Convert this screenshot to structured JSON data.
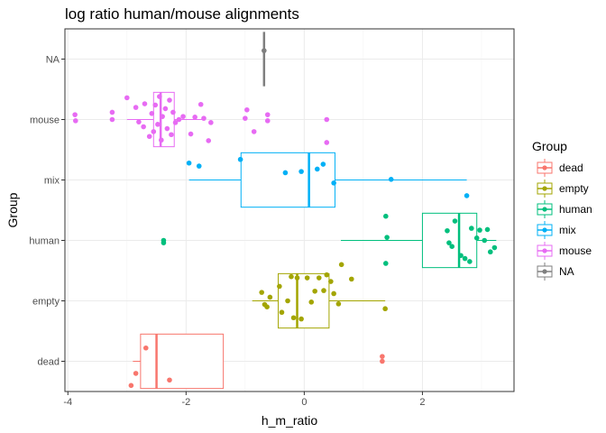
{
  "chart_data": {
    "type": "boxplot",
    "title": "log ratio human/mouse alignments",
    "xlabel": "h_m_ratio",
    "ylabel": "Group",
    "xlim": [
      -4.05,
      3.55
    ],
    "x_ticks": [
      "-4",
      "-2",
      "0",
      "2"
    ],
    "x_tick_values": [
      -4,
      -2,
      0,
      2
    ],
    "categories": [
      "dead",
      "empty",
      "human",
      "mix",
      "mouse",
      "NA"
    ],
    "grid": true,
    "legend": {
      "title": "Group",
      "placement": "right",
      "entries": [
        "dead",
        "empty",
        "human",
        "mix",
        "mouse",
        "NA"
      ]
    },
    "colors": {
      "dead": "#f8766d",
      "empty": "#a3a500",
      "human": "#00bf7d",
      "mix": "#00b0f6",
      "mouse": "#e76bf3",
      "NA": "#7f7f7f"
    },
    "series": [
      {
        "name": "dead",
        "box": {
          "whisker_low": -2.9,
          "q1": -2.77,
          "median": -2.5,
          "q3": -1.37,
          "whisker_high": -1.37
        },
        "outliers": [],
        "points": [
          {
            "x": -2.93,
            "jitter": -0.4
          },
          {
            "x": -2.85,
            "jitter": -0.2
          },
          {
            "x": -2.68,
            "jitter": 0.22
          },
          {
            "x": -2.28,
            "jitter": -0.31
          },
          {
            "x": 1.32,
            "jitter": 0.08
          },
          {
            "x": 1.32,
            "jitter": 0.0
          }
        ]
      },
      {
        "name": "empty",
        "box": {
          "whisker_low": -0.88,
          "q1": -0.44,
          "median": -0.12,
          "q3": 0.42,
          "whisker_high": 1.37
        },
        "outliers": [],
        "points": [
          {
            "x": -0.72,
            "jitter": 0.14
          },
          {
            "x": -0.67,
            "jitter": -0.06
          },
          {
            "x": -0.63,
            "jitter": -0.1
          },
          {
            "x": -0.58,
            "jitter": 0.06
          },
          {
            "x": -0.42,
            "jitter": 0.24
          },
          {
            "x": -0.38,
            "jitter": -0.19
          },
          {
            "x": -0.28,
            "jitter": 0.0
          },
          {
            "x": -0.22,
            "jitter": 0.4
          },
          {
            "x": -0.18,
            "jitter": -0.28
          },
          {
            "x": -0.12,
            "jitter": 0.38
          },
          {
            "x": -0.05,
            "jitter": -0.3
          },
          {
            "x": 0.05,
            "jitter": 0.38
          },
          {
            "x": 0.12,
            "jitter": -0.02
          },
          {
            "x": 0.18,
            "jitter": 0.16
          },
          {
            "x": 0.25,
            "jitter": 0.38
          },
          {
            "x": 0.33,
            "jitter": 0.17
          },
          {
            "x": 0.38,
            "jitter": 0.43
          },
          {
            "x": 0.45,
            "jitter": 0.32
          },
          {
            "x": 0.5,
            "jitter": 0.12
          },
          {
            "x": 0.58,
            "jitter": -0.05
          },
          {
            "x": 0.63,
            "jitter": 0.6
          },
          {
            "x": 0.8,
            "jitter": 0.36
          },
          {
            "x": 1.37,
            "jitter": -0.13
          }
        ]
      },
      {
        "name": "human",
        "box": {
          "whisker_low": 0.62,
          "q1": 2.0,
          "median": 2.62,
          "q3": 2.92,
          "whisker_high": 3.25
        },
        "outliers": [
          -2.38
        ],
        "points": [
          {
            "x": -2.38,
            "jitter": 0.0
          },
          {
            "x": -2.38,
            "jitter": -0.04
          },
          {
            "x": 1.38,
            "jitter": 0.4
          },
          {
            "x": 1.4,
            "jitter": 0.05
          },
          {
            "x": 1.38,
            "jitter": -0.38
          },
          {
            "x": 2.42,
            "jitter": 0.16
          },
          {
            "x": 2.45,
            "jitter": -0.04
          },
          {
            "x": 2.5,
            "jitter": -0.1
          },
          {
            "x": 2.55,
            "jitter": 0.32
          },
          {
            "x": 2.65,
            "jitter": -0.25
          },
          {
            "x": 2.72,
            "jitter": -0.3
          },
          {
            "x": 2.8,
            "jitter": -0.35
          },
          {
            "x": 2.83,
            "jitter": 0.2
          },
          {
            "x": 2.92,
            "jitter": 0.04
          },
          {
            "x": 2.97,
            "jitter": 0.17
          },
          {
            "x": 3.05,
            "jitter": 0.0
          },
          {
            "x": 3.1,
            "jitter": 0.18
          },
          {
            "x": 3.15,
            "jitter": -0.19
          },
          {
            "x": 3.22,
            "jitter": -0.12
          }
        ]
      },
      {
        "name": "mix",
        "box": {
          "whisker_low": -1.95,
          "q1": -1.07,
          "median": 0.08,
          "q3": 0.52,
          "whisker_high": 2.75
        },
        "outliers": [],
        "points": [
          {
            "x": -1.95,
            "jitter": 0.28
          },
          {
            "x": -1.78,
            "jitter": 0.23
          },
          {
            "x": -1.08,
            "jitter": 0.34
          },
          {
            "x": -0.32,
            "jitter": 0.12
          },
          {
            "x": -0.05,
            "jitter": 0.14
          },
          {
            "x": 0.22,
            "jitter": 0.18
          },
          {
            "x": 0.32,
            "jitter": 0.26
          },
          {
            "x": 0.5,
            "jitter": -0.05
          },
          {
            "x": 1.47,
            "jitter": 0.01
          },
          {
            "x": 2.75,
            "jitter": -0.26
          }
        ]
      },
      {
        "name": "mouse",
        "box": {
          "whisker_low": -3.0,
          "q1": -2.55,
          "median": -2.43,
          "q3": -2.2,
          "whisker_high": -1.68
        },
        "outliers": [
          -3.88,
          -3.25,
          -1.0,
          -0.95,
          -0.85,
          -0.62
        ],
        "points": [
          {
            "x": -3.88,
            "jitter": 0.08
          },
          {
            "x": -3.87,
            "jitter": -0.02
          },
          {
            "x": -3.25,
            "jitter": 0.12
          },
          {
            "x": -3.25,
            "jitter": 0.0
          },
          {
            "x": -3.0,
            "jitter": 0.36
          },
          {
            "x": -2.85,
            "jitter": 0.2
          },
          {
            "x": -2.8,
            "jitter": -0.04
          },
          {
            "x": -2.72,
            "jitter": -0.12
          },
          {
            "x": -2.7,
            "jitter": 0.26
          },
          {
            "x": -2.62,
            "jitter": -0.28
          },
          {
            "x": -2.58,
            "jitter": 0.1
          },
          {
            "x": -2.55,
            "jitter": -0.2
          },
          {
            "x": -2.52,
            "jitter": 0.24
          },
          {
            "x": -2.48,
            "jitter": -0.08
          },
          {
            "x": -2.45,
            "jitter": 0.38
          },
          {
            "x": -2.42,
            "jitter": -0.34
          },
          {
            "x": -2.4,
            "jitter": 0.05
          },
          {
            "x": -2.35,
            "jitter": 0.18
          },
          {
            "x": -2.32,
            "jitter": -0.15
          },
          {
            "x": -2.28,
            "jitter": 0.32
          },
          {
            "x": -2.25,
            "jitter": -0.25
          },
          {
            "x": -2.22,
            "jitter": 0.12
          },
          {
            "x": -2.18,
            "jitter": -0.05
          },
          {
            "x": -2.12,
            "jitter": 0.0
          },
          {
            "x": -2.05,
            "jitter": 0.05
          },
          {
            "x": -1.92,
            "jitter": -0.24
          },
          {
            "x": -1.85,
            "jitter": 0.04
          },
          {
            "x": -1.75,
            "jitter": 0.25
          },
          {
            "x": -1.7,
            "jitter": 0.02
          },
          {
            "x": -1.62,
            "jitter": -0.35
          },
          {
            "x": -1.58,
            "jitter": -0.05
          },
          {
            "x": -1.0,
            "jitter": 0.02
          },
          {
            "x": -0.97,
            "jitter": 0.16
          },
          {
            "x": -0.85,
            "jitter": -0.2
          },
          {
            "x": -0.62,
            "jitter": 0.08
          },
          {
            "x": -0.62,
            "jitter": -0.02
          },
          {
            "x": 0.38,
            "jitter": 0.0
          },
          {
            "x": 0.38,
            "jitter": -0.38
          }
        ]
      },
      {
        "name": "NA",
        "box": {
          "whisker_low": -0.68,
          "q1": -0.68,
          "median": -0.68,
          "q3": -0.68,
          "whisker_high": -0.68
        },
        "outliers": [],
        "points": [
          {
            "x": -0.68,
            "jitter": 0.14
          }
        ]
      }
    ]
  }
}
